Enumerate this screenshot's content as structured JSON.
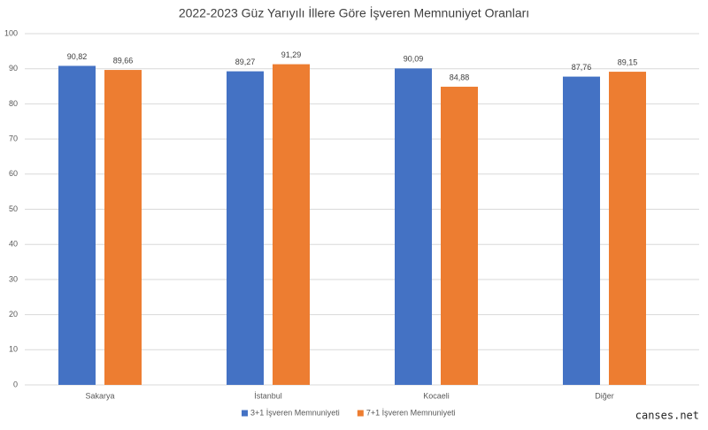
{
  "chart_data": {
    "type": "bar",
    "title": "2022-2023 Güz Yarıyılı İllere Göre İşveren Memnuniyet Oranları",
    "categories": [
      "Sakarya",
      "İstanbul",
      "Kocaeli",
      "Diğer"
    ],
    "series": [
      {
        "name": "3+1 İşveren Memnuniyeti",
        "color": "#4472c4",
        "values": [
          90.82,
          89.27,
          90.09,
          87.76
        ],
        "value_labels": [
          "90,82",
          "89,27",
          "90,09",
          "87,76"
        ]
      },
      {
        "name": "7+1 İşveren Memnuniyeti",
        "color": "#ed7d31",
        "values": [
          89.66,
          91.29,
          84.88,
          89.15
        ],
        "value_labels": [
          "89,66",
          "91,29",
          "84,88",
          "89,15"
        ]
      }
    ],
    "ylim": [
      0,
      100
    ],
    "yticks": [
      0,
      10,
      20,
      30,
      40,
      50,
      60,
      70,
      80,
      90,
      100
    ],
    "grid": true,
    "legend": "bottom",
    "watermark": "canses.net"
  }
}
